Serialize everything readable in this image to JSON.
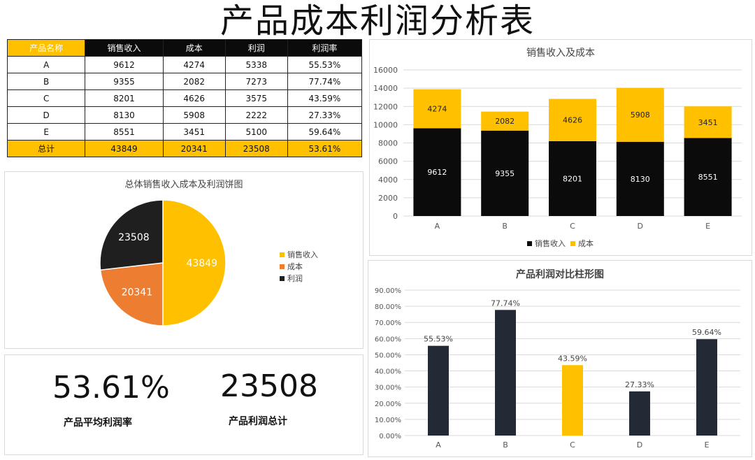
{
  "title": "产品成本利润分析表",
  "table": {
    "headers": [
      "产品名称",
      "销售收入",
      "成本",
      "利润",
      "利润率"
    ],
    "rows": [
      [
        "A",
        "9612",
        "4274",
        "5338",
        "55.53%"
      ],
      [
        "B",
        "9355",
        "2082",
        "7273",
        "77.74%"
      ],
      [
        "C",
        "8201",
        "4626",
        "3575",
        "43.59%"
      ],
      [
        "D",
        "8130",
        "5908",
        "2222",
        "27.33%"
      ],
      [
        "E",
        "8551",
        "3451",
        "5100",
        "59.64%"
      ]
    ],
    "total": [
      "总计",
      "43849",
      "20341",
      "23508",
      "53.61%"
    ]
  },
  "kpi": {
    "avg_margin_value": "53.61%",
    "avg_margin_label": "产品平均利润率",
    "total_profit_value": "23508",
    "total_profit_label": "产品利润总计"
  },
  "colors": {
    "gold": "#ffc000",
    "black": "#0b0b0b",
    "orange": "#ed7d31",
    "dark": "#1f1f1f",
    "navy": "#232a36"
  },
  "chart_data": [
    {
      "type": "pie",
      "title": "总体销售收入成本及利润饼图",
      "labels": [
        "销售收入",
        "成本",
        "利润"
      ],
      "values": [
        43849,
        20341,
        23508
      ],
      "colors": [
        "#ffc000",
        "#ed7d31",
        "#1f1f1f"
      ],
      "legend": "right"
    },
    {
      "type": "bar",
      "stacked": true,
      "title": "销售收入及成本",
      "categories": [
        "A",
        "B",
        "C",
        "D",
        "E"
      ],
      "series": [
        {
          "name": "销售收入",
          "values": [
            9612,
            9355,
            8201,
            8130,
            8551
          ],
          "color": "#0b0b0b"
        },
        {
          "name": "成本",
          "values": [
            4274,
            2082,
            4626,
            5908,
            3451
          ],
          "color": "#ffc000"
        }
      ],
      "ylim": [
        0,
        16000
      ],
      "yticks": [
        "0",
        "2000",
        "4000",
        "6000",
        "8000",
        "10000",
        "12000",
        "14000",
        "16000"
      ],
      "grid": true,
      "legend": "bottom"
    },
    {
      "type": "bar",
      "title": "产品利润对比柱形图",
      "categories": [
        "A",
        "B",
        "C",
        "D",
        "E"
      ],
      "values": [
        55.53,
        77.74,
        43.59,
        27.33,
        59.64
      ],
      "value_labels": [
        "55.53%",
        "77.74%",
        "43.59%",
        "27.33%",
        "59.64%"
      ],
      "colors": [
        "#232a36",
        "#232a36",
        "#ffc000",
        "#232a36",
        "#232a36"
      ],
      "ylim": [
        0,
        90
      ],
      "yticks": [
        "0.00%",
        "10.00%",
        "20.00%",
        "30.00%",
        "40.00%",
        "50.00%",
        "60.00%",
        "70.00%",
        "80.00%",
        "90.00%"
      ],
      "grid": true
    }
  ]
}
